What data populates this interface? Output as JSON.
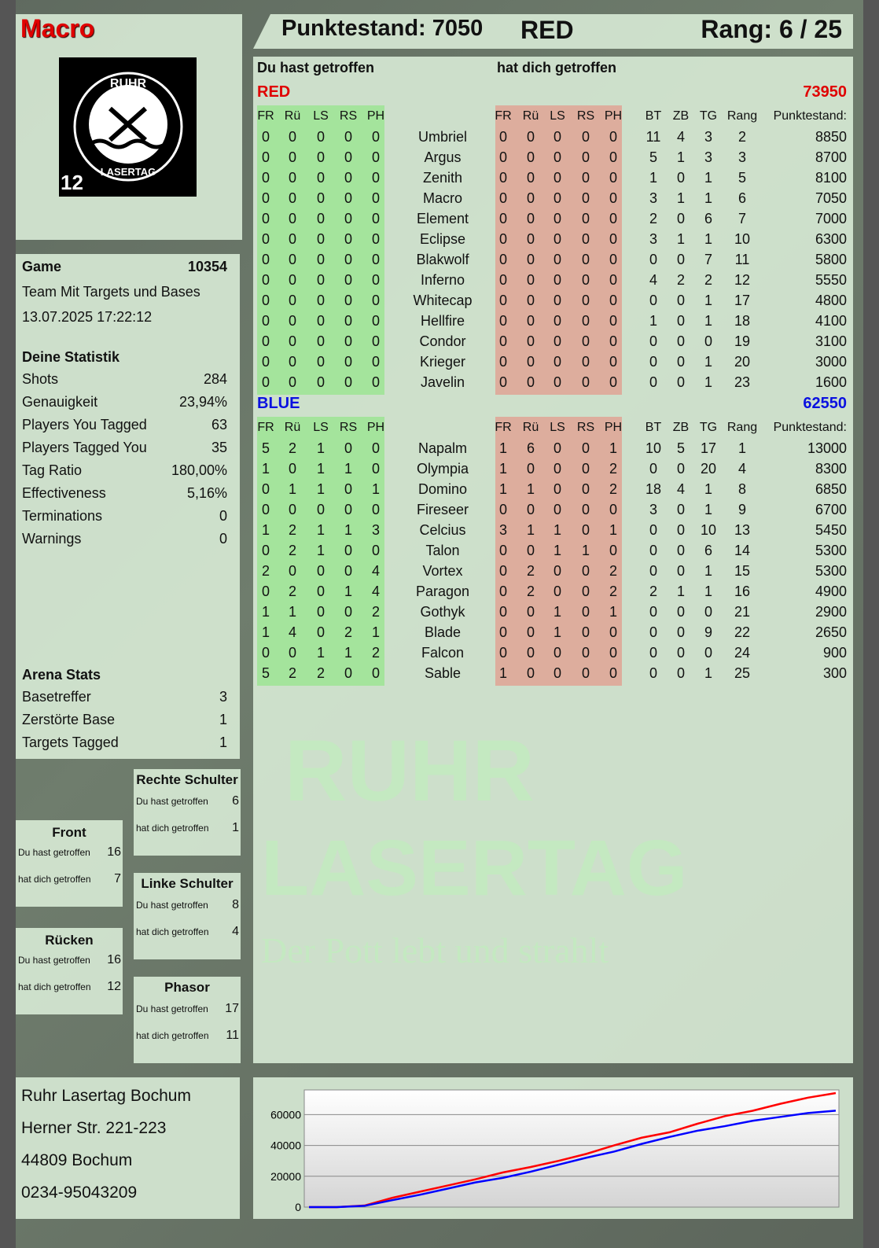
{
  "player": {
    "name": "Macro",
    "logo_text": "RUHR LASERTAG",
    "logo_badge": "12"
  },
  "header": {
    "score_label": "Punktestand: 7050",
    "team": "RED",
    "rank_label": "Rang: 6 / 25"
  },
  "main": {
    "you_hit_label": "Du hast getroffen",
    "hit_you_label": "hat dich getroffen",
    "columns_hit": [
      "FR",
      "Rü",
      "LS",
      "RS",
      "PH"
    ],
    "columns_stats": [
      "BT",
      "ZB",
      "TG",
      "Rang",
      "Punktestand:"
    ],
    "teams": [
      {
        "name": "RED",
        "score": "73950",
        "color": "#e00000",
        "rows": [
          [
            "0",
            "0",
            "0",
            "0",
            "0",
            "Umbriel",
            "0",
            "0",
            "0",
            "0",
            "0",
            "11",
            "4",
            "3",
            "2",
            "8850"
          ],
          [
            "0",
            "0",
            "0",
            "0",
            "0",
            "Argus",
            "0",
            "0",
            "0",
            "0",
            "0",
            "5",
            "1",
            "3",
            "3",
            "8700"
          ],
          [
            "0",
            "0",
            "0",
            "0",
            "0",
            "Zenith",
            "0",
            "0",
            "0",
            "0",
            "0",
            "1",
            "0",
            "1",
            "5",
            "8100"
          ],
          [
            "0",
            "0",
            "0",
            "0",
            "0",
            "Macro",
            "0",
            "0",
            "0",
            "0",
            "0",
            "3",
            "1",
            "1",
            "6",
            "7050"
          ],
          [
            "0",
            "0",
            "0",
            "0",
            "0",
            "Element",
            "0",
            "0",
            "0",
            "0",
            "0",
            "2",
            "0",
            "6",
            "7",
            "7000"
          ],
          [
            "0",
            "0",
            "0",
            "0",
            "0",
            "Eclipse",
            "0",
            "0",
            "0",
            "0",
            "0",
            "3",
            "1",
            "1",
            "10",
            "6300"
          ],
          [
            "0",
            "0",
            "0",
            "0",
            "0",
            "Blakwolf",
            "0",
            "0",
            "0",
            "0",
            "0",
            "0",
            "0",
            "7",
            "11",
            "5800"
          ],
          [
            "0",
            "0",
            "0",
            "0",
            "0",
            "Inferno",
            "0",
            "0",
            "0",
            "0",
            "0",
            "4",
            "2",
            "2",
            "12",
            "5550"
          ],
          [
            "0",
            "0",
            "0",
            "0",
            "0",
            "Whitecap",
            "0",
            "0",
            "0",
            "0",
            "0",
            "0",
            "0",
            "1",
            "17",
            "4800"
          ],
          [
            "0",
            "0",
            "0",
            "0",
            "0",
            "Hellfire",
            "0",
            "0",
            "0",
            "0",
            "0",
            "1",
            "0",
            "1",
            "18",
            "4100"
          ],
          [
            "0",
            "0",
            "0",
            "0",
            "0",
            "Condor",
            "0",
            "0",
            "0",
            "0",
            "0",
            "0",
            "0",
            "0",
            "19",
            "3100"
          ],
          [
            "0",
            "0",
            "0",
            "0",
            "0",
            "Krieger",
            "0",
            "0",
            "0",
            "0",
            "0",
            "0",
            "0",
            "1",
            "20",
            "3000"
          ],
          [
            "0",
            "0",
            "0",
            "0",
            "0",
            "Javelin",
            "0",
            "0",
            "0",
            "0",
            "0",
            "0",
            "0",
            "1",
            "23",
            "1600"
          ]
        ]
      },
      {
        "name": "BLUE",
        "score": "62550",
        "color": "#0a10e0",
        "rows": [
          [
            "5",
            "2",
            "1",
            "0",
            "0",
            "Napalm",
            "1",
            "6",
            "0",
            "0",
            "1",
            "10",
            "5",
            "17",
            "1",
            "13000"
          ],
          [
            "1",
            "0",
            "1",
            "1",
            "0",
            "Olympia",
            "1",
            "0",
            "0",
            "0",
            "2",
            "0",
            "0",
            "20",
            "4",
            "8300"
          ],
          [
            "0",
            "1",
            "1",
            "0",
            "1",
            "Domino",
            "1",
            "1",
            "0",
            "0",
            "2",
            "18",
            "4",
            "1",
            "8",
            "6850"
          ],
          [
            "0",
            "0",
            "0",
            "0",
            "0",
            "Fireseer",
            "0",
            "0",
            "0",
            "0",
            "0",
            "3",
            "0",
            "1",
            "9",
            "6700"
          ],
          [
            "1",
            "2",
            "1",
            "1",
            "3",
            "Celcius",
            "3",
            "1",
            "1",
            "0",
            "1",
            "0",
            "0",
            "10",
            "13",
            "5450"
          ],
          [
            "0",
            "2",
            "1",
            "0",
            "0",
            "Talon",
            "0",
            "0",
            "1",
            "1",
            "0",
            "0",
            "0",
            "6",
            "14",
            "5300"
          ],
          [
            "2",
            "0",
            "0",
            "0",
            "4",
            "Vortex",
            "0",
            "2",
            "0",
            "0",
            "2",
            "0",
            "0",
            "1",
            "15",
            "5300"
          ],
          [
            "0",
            "2",
            "0",
            "1",
            "4",
            "Paragon",
            "0",
            "2",
            "0",
            "0",
            "2",
            "2",
            "1",
            "1",
            "16",
            "4900"
          ],
          [
            "1",
            "1",
            "0",
            "0",
            "2",
            "Gothyk",
            "0",
            "0",
            "1",
            "0",
            "1",
            "0",
            "0",
            "0",
            "21",
            "2900"
          ],
          [
            "1",
            "4",
            "0",
            "2",
            "1",
            "Blade",
            "0",
            "0",
            "1",
            "0",
            "0",
            "0",
            "0",
            "9",
            "22",
            "2650"
          ],
          [
            "0",
            "0",
            "1",
            "1",
            "2",
            "Falcon",
            "0",
            "0",
            "0",
            "0",
            "0",
            "0",
            "0",
            "0",
            "24",
            "900"
          ],
          [
            "5",
            "2",
            "2",
            "0",
            "0",
            "Sable",
            "1",
            "0",
            "0",
            "0",
            "0",
            "0",
            "0",
            "1",
            "25",
            "300"
          ]
        ]
      }
    ]
  },
  "game": {
    "label": "Game",
    "id": "10354",
    "mode": "Team Mit Targets und Bases",
    "datetime": "13.07.2025 17:22:12"
  },
  "stats": {
    "title": "Deine Statistik",
    "items": [
      {
        "label": "Shots",
        "value": "284"
      },
      {
        "label": "Genauigkeit",
        "value": "23,94%"
      },
      {
        "label": "Players You Tagged",
        "value": "63"
      },
      {
        "label": "Players Tagged You",
        "value": "35"
      },
      {
        "label": "Tag Ratio",
        "value": "180,00%"
      },
      {
        "label": "Effectiveness",
        "value": "5,16%"
      },
      {
        "label": "Terminations",
        "value": "0"
      },
      {
        "label": "Warnings",
        "value": "0"
      }
    ]
  },
  "arena": {
    "title": "Arena Stats",
    "items": [
      {
        "label": "Basetreffer",
        "value": "3"
      },
      {
        "label": "Zerstörte Base",
        "value": "1"
      },
      {
        "label": "Targets Tagged",
        "value": "1"
      }
    ]
  },
  "zones": [
    {
      "title": "Rechte Schulter",
      "you_hit": "6",
      "hit_you": "1"
    },
    {
      "title": "Front",
      "you_hit": "16",
      "hit_you": "7"
    },
    {
      "title": "Linke Schulter",
      "you_hit": "8",
      "hit_you": "4"
    },
    {
      "title": "Rücken",
      "you_hit": "16",
      "hit_you": "12"
    },
    {
      "title": "Phasor",
      "you_hit": "17",
      "hit_you": "11"
    }
  ],
  "zone_labels": {
    "you_hit": "Du hast getroffen",
    "hit_you": "hat dich getroffen"
  },
  "address": [
    "Ruhr Lasertag Bochum",
    "Herner Str. 221-223",
    "44809 Bochum",
    "0234-95043209"
  ],
  "watermark": {
    "line1": "RUHR",
    "line2": "LASERTAG",
    "slogan": "Der Pott lebt und strahlt"
  },
  "colors": {
    "red": "#e00000",
    "blue": "#0a10e0",
    "green_cells": "#a8e6a0",
    "red_cells": "#e0a898"
  },
  "chart_data": {
    "type": "line",
    "ylim": [
      0,
      76000
    ],
    "yticks": [
      "60000",
      "40000",
      "20000",
      "0"
    ],
    "grid": true,
    "series": [
      {
        "color": "#ff0000",
        "values": [
          0,
          0,
          1000,
          6000,
          10000,
          14000,
          18000,
          22500,
          26000,
          30000,
          34500,
          40000,
          45000,
          48500,
          54000,
          59000,
          62500,
          67000,
          71000,
          73950
        ]
      },
      {
        "color": "#0000ff",
        "values": [
          0,
          0,
          800,
          4500,
          8000,
          12000,
          16000,
          19000,
          23000,
          27500,
          32000,
          36000,
          41000,
          45500,
          49500,
          52500,
          56000,
          58500,
          61000,
          62550
        ]
      }
    ]
  }
}
